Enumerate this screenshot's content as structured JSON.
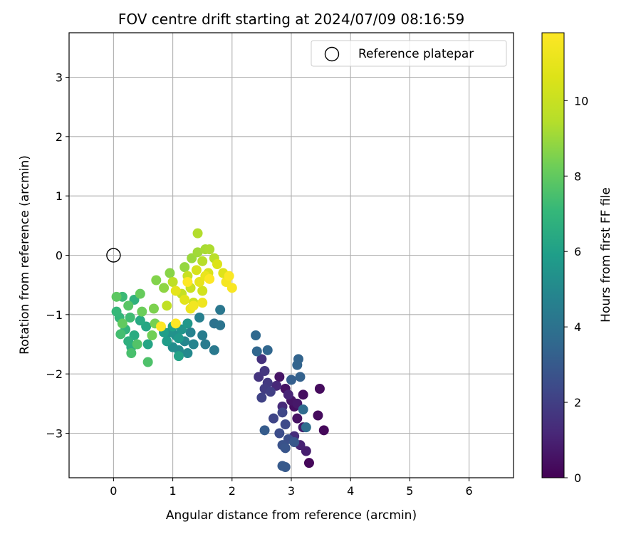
{
  "chart_data": {
    "type": "scatter",
    "title": "FOV centre drift starting at 2024/07/09 08:16:59",
    "xlabel": "Angular distance from reference (arcmin)",
    "ylabel": "Rotation from reference (arcmin)",
    "xlim": [
      -0.75,
      6.75
    ],
    "ylim": [
      -3.75,
      3.75
    ],
    "xticks": [
      0,
      1,
      2,
      3,
      4,
      5,
      6
    ],
    "yticks": [
      -3,
      -2,
      -1,
      0,
      1,
      2,
      3
    ],
    "xtick_labels": [
      "0",
      "1",
      "2",
      "3",
      "4",
      "5",
      "6"
    ],
    "ytick_labels": [
      "−3",
      "−2",
      "−1",
      "0",
      "1",
      "2",
      "3"
    ],
    "grid": true,
    "legend": {
      "position": "top-right",
      "label": "Reference platepar"
    },
    "reference_point": {
      "x": 0,
      "y": 0
    },
    "colorbar": {
      "label": "Hours from first FF file",
      "range": [
        0,
        11.8
      ],
      "ticks": [
        0,
        2,
        4,
        6,
        8,
        10
      ],
      "tick_labels": [
        "0",
        "2",
        "4",
        "6",
        "8",
        "10"
      ],
      "colormap": "viridis"
    },
    "points": [
      {
        "x": 3.3,
        "y": -3.5,
        "h": 0.2
      },
      {
        "x": 3.55,
        "y": -2.95,
        "h": 0.2
      },
      {
        "x": 3.45,
        "y": -2.7,
        "h": 0.3
      },
      {
        "x": 3.48,
        "y": -2.25,
        "h": 0.3
      },
      {
        "x": 3.2,
        "y": -2.35,
        "h": 0.4
      },
      {
        "x": 3.05,
        "y": -2.55,
        "h": 0.4
      },
      {
        "x": 3.1,
        "y": -2.75,
        "h": 0.5
      },
      {
        "x": 2.9,
        "y": -2.25,
        "h": 0.5
      },
      {
        "x": 2.8,
        "y": -2.05,
        "h": 0.6
      },
      {
        "x": 3.0,
        "y": -2.45,
        "h": 0.6
      },
      {
        "x": 3.1,
        "y": -2.5,
        "h": 0.7
      },
      {
        "x": 3.2,
        "y": -2.9,
        "h": 0.8
      },
      {
        "x": 3.25,
        "y": -3.3,
        "h": 0.9
      },
      {
        "x": 3.15,
        "y": -3.2,
        "h": 1.0
      },
      {
        "x": 2.95,
        "y": -2.35,
        "h": 1.1
      },
      {
        "x": 2.75,
        "y": -2.2,
        "h": 1.2
      },
      {
        "x": 2.85,
        "y": -2.55,
        "h": 1.3
      },
      {
        "x": 3.05,
        "y": -3.05,
        "h": 1.4
      },
      {
        "x": 2.5,
        "y": -1.75,
        "h": 1.5
      },
      {
        "x": 2.45,
        "y": -2.05,
        "h": 1.6
      },
      {
        "x": 2.55,
        "y": -1.95,
        "h": 1.7
      },
      {
        "x": 2.6,
        "y": -2.15,
        "h": 1.8
      },
      {
        "x": 2.55,
        "y": -2.25,
        "h": 1.9
      },
      {
        "x": 2.65,
        "y": -2.3,
        "h": 2.0
      },
      {
        "x": 2.5,
        "y": -2.4,
        "h": 2.1
      },
      {
        "x": 2.7,
        "y": -2.75,
        "h": 2.2
      },
      {
        "x": 2.85,
        "y": -2.65,
        "h": 2.3
      },
      {
        "x": 2.9,
        "y": -2.85,
        "h": 2.4
      },
      {
        "x": 2.8,
        "y": -3.0,
        "h": 2.5
      },
      {
        "x": 2.95,
        "y": -3.1,
        "h": 2.6
      },
      {
        "x": 2.85,
        "y": -3.2,
        "h": 2.7
      },
      {
        "x": 2.9,
        "y": -3.25,
        "h": 2.8
      },
      {
        "x": 3.05,
        "y": -3.15,
        "h": 2.9
      },
      {
        "x": 2.85,
        "y": -3.55,
        "h": 3.0
      },
      {
        "x": 2.9,
        "y": -3.57,
        "h": 3.0
      },
      {
        "x": 2.55,
        "y": -2.95,
        "h": 3.1
      },
      {
        "x": 3.0,
        "y": -2.1,
        "h": 3.2
      },
      {
        "x": 3.15,
        "y": -2.05,
        "h": 3.3
      },
      {
        "x": 3.1,
        "y": -1.85,
        "h": 3.4
      },
      {
        "x": 3.12,
        "y": -1.75,
        "h": 3.4
      },
      {
        "x": 2.6,
        "y": -1.6,
        "h": 3.5
      },
      {
        "x": 2.42,
        "y": -1.62,
        "h": 3.5
      },
      {
        "x": 2.4,
        "y": -1.35,
        "h": 3.6
      },
      {
        "x": 3.2,
        "y": -2.6,
        "h": 3.7
      },
      {
        "x": 3.25,
        "y": -2.9,
        "h": 3.8
      },
      {
        "x": 1.7,
        "y": -1.15,
        "h": 4.0
      },
      {
        "x": 1.8,
        "y": -1.18,
        "h": 4.1
      },
      {
        "x": 1.8,
        "y": -0.92,
        "h": 4.2
      },
      {
        "x": 1.7,
        "y": -1.6,
        "h": 4.3
      },
      {
        "x": 1.55,
        "y": -1.5,
        "h": 4.4
      },
      {
        "x": 1.5,
        "y": -1.35,
        "h": 4.5
      },
      {
        "x": 1.45,
        "y": -1.05,
        "h": 4.6
      },
      {
        "x": 1.3,
        "y": -1.3,
        "h": 4.7
      },
      {
        "x": 1.35,
        "y": -1.5,
        "h": 4.8
      },
      {
        "x": 1.2,
        "y": -1.45,
        "h": 4.9
      },
      {
        "x": 1.25,
        "y": -1.65,
        "h": 5.0
      },
      {
        "x": 1.1,
        "y": -1.6,
        "h": 5.1
      },
      {
        "x": 1.0,
        "y": -1.55,
        "h": 5.2
      },
      {
        "x": 1.05,
        "y": -1.35,
        "h": 5.3
      },
      {
        "x": 0.95,
        "y": -1.3,
        "h": 5.4
      },
      {
        "x": 1.15,
        "y": -1.25,
        "h": 5.5
      },
      {
        "x": 1.25,
        "y": -1.15,
        "h": 5.6
      },
      {
        "x": 1.1,
        "y": -1.4,
        "h": 5.7
      },
      {
        "x": 0.9,
        "y": -1.45,
        "h": 5.8
      },
      {
        "x": 0.85,
        "y": -1.3,
        "h": 5.9
      },
      {
        "x": 1.0,
        "y": -1.2,
        "h": 6.0
      },
      {
        "x": 1.1,
        "y": -1.7,
        "h": 6.1
      },
      {
        "x": 0.58,
        "y": -1.5,
        "h": 6.2
      },
      {
        "x": 0.55,
        "y": -1.2,
        "h": 6.3
      },
      {
        "x": 0.45,
        "y": -1.1,
        "h": 6.4
      },
      {
        "x": 0.35,
        "y": -1.35,
        "h": 6.5
      },
      {
        "x": 0.3,
        "y": -1.55,
        "h": 6.6
      },
      {
        "x": 0.25,
        "y": -1.45,
        "h": 6.7
      },
      {
        "x": 0.35,
        "y": -0.75,
        "h": 6.8
      },
      {
        "x": 0.2,
        "y": -1.25,
        "h": 6.9
      },
      {
        "x": 0.1,
        "y": -1.05,
        "h": 7.0
      },
      {
        "x": 0.05,
        "y": -0.95,
        "h": 7.1
      },
      {
        "x": 0.15,
        "y": -0.7,
        "h": 7.2
      },
      {
        "x": 0.28,
        "y": -1.05,
        "h": 7.3
      },
      {
        "x": 0.12,
        "y": -1.33,
        "h": 7.4
      },
      {
        "x": 0.3,
        "y": -1.65,
        "h": 7.5
      },
      {
        "x": 0.58,
        "y": -1.8,
        "h": 7.6
      },
      {
        "x": 0.4,
        "y": -1.5,
        "h": 7.7
      },
      {
        "x": 0.25,
        "y": -0.85,
        "h": 7.8
      },
      {
        "x": 0.05,
        "y": -0.7,
        "h": 7.9
      },
      {
        "x": 0.15,
        "y": -1.15,
        "h": 8.0
      },
      {
        "x": 0.45,
        "y": -0.65,
        "h": 8.1
      },
      {
        "x": 0.48,
        "y": -0.95,
        "h": 8.2
      },
      {
        "x": 0.65,
        "y": -1.35,
        "h": 8.3
      },
      {
        "x": 0.7,
        "y": -1.15,
        "h": 8.4
      },
      {
        "x": 0.68,
        "y": -0.9,
        "h": 8.5
      },
      {
        "x": 0.72,
        "y": -0.42,
        "h": 8.6
      },
      {
        "x": 0.95,
        "y": -0.3,
        "h": 8.7
      },
      {
        "x": 0.85,
        "y": -0.55,
        "h": 8.8
      },
      {
        "x": 1.2,
        "y": -0.2,
        "h": 8.9
      },
      {
        "x": 1.32,
        "y": -0.05,
        "h": 9.0
      },
      {
        "x": 1.42,
        "y": 0.05,
        "h": 9.1
      },
      {
        "x": 1.55,
        "y": 0.1,
        "h": 9.2
      },
      {
        "x": 1.62,
        "y": 0.1,
        "h": 9.3
      },
      {
        "x": 1.42,
        "y": 0.37,
        "h": 9.4
      },
      {
        "x": 1.5,
        "y": -0.1,
        "h": 9.5
      },
      {
        "x": 1.7,
        "y": -0.05,
        "h": 9.6
      },
      {
        "x": 1.0,
        "y": -0.45,
        "h": 9.7
      },
      {
        "x": 0.9,
        "y": -0.85,
        "h": 9.8
      },
      {
        "x": 1.15,
        "y": -0.65,
        "h": 9.9
      },
      {
        "x": 1.25,
        "y": -0.35,
        "h": 10.0
      },
      {
        "x": 1.3,
        "y": -0.55,
        "h": 10.1
      },
      {
        "x": 1.35,
        "y": -0.8,
        "h": 10.2
      },
      {
        "x": 1.5,
        "y": -0.6,
        "h": 10.3
      },
      {
        "x": 1.4,
        "y": -0.25,
        "h": 10.4
      },
      {
        "x": 1.6,
        "y": -0.3,
        "h": 10.5
      },
      {
        "x": 1.75,
        "y": -0.15,
        "h": 10.6
      },
      {
        "x": 1.85,
        "y": -0.3,
        "h": 10.7
      },
      {
        "x": 1.2,
        "y": -0.75,
        "h": 10.8
      },
      {
        "x": 1.05,
        "y": -0.6,
        "h": 10.9
      },
      {
        "x": 1.45,
        "y": -0.45,
        "h": 11.0
      },
      {
        "x": 1.55,
        "y": -0.35,
        "h": 11.1
      },
      {
        "x": 1.3,
        "y": -0.9,
        "h": 11.2
      },
      {
        "x": 1.5,
        "y": -0.8,
        "h": 11.3
      },
      {
        "x": 1.35,
        "y": -0.85,
        "h": 11.4
      },
      {
        "x": 1.9,
        "y": -0.45,
        "h": 11.5
      },
      {
        "x": 2.0,
        "y": -0.55,
        "h": 11.6
      },
      {
        "x": 1.95,
        "y": -0.35,
        "h": 11.7
      },
      {
        "x": 0.8,
        "y": -1.2,
        "h": 11.8
      },
      {
        "x": 1.05,
        "y": -1.15,
        "h": 11.8
      },
      {
        "x": 1.62,
        "y": -0.4,
        "h": 11.8
      },
      {
        "x": 1.25,
        "y": -0.45,
        "h": 11.8
      }
    ]
  }
}
